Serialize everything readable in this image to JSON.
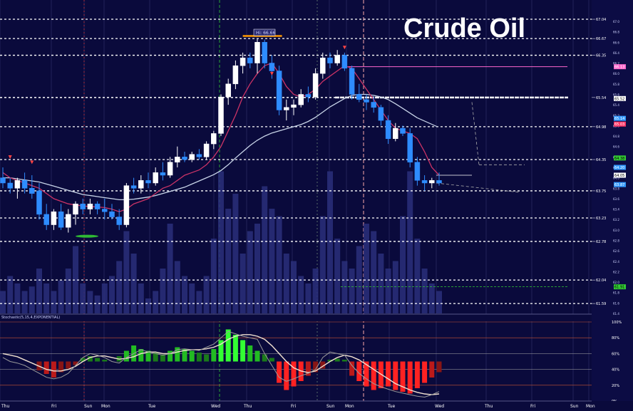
{
  "chart_data": {
    "type": "candlestick",
    "title": "Crude Oil",
    "price_axis": {
      "ticks": [
        67.04,
        66.67,
        66.35,
        65.54,
        64.98,
        64.35,
        63.75,
        63.23,
        62.78,
        62.04,
        61.59
      ],
      "markers": [
        {
          "value": 66.13,
          "color": "#ff66cc"
        },
        {
          "value": 65.52,
          "color": "#ffffff"
        },
        {
          "value": 65.14,
          "color": "#3399ff"
        },
        {
          "value": 65.03,
          "color": "#ff3366"
        },
        {
          "value": 64.38,
          "color": "#33cc33"
        },
        {
          "value": 64.2,
          "color": "#3399ff"
        },
        {
          "value": 64.05,
          "color": "#ffffff"
        },
        {
          "value": 63.87,
          "color": "#3399ff"
        },
        {
          "value": 61.91,
          "color": "#33cc33"
        }
      ],
      "range": [
        61.4,
        67.3
      ]
    },
    "peak_label": "Hi: 66.66",
    "indicator_label": "Stochastic(5,15,4,EXPONENTIAL)",
    "indicator_axis": {
      "ticks": [
        "100%",
        "80%",
        "60%",
        "40%",
        "20%",
        "0%"
      ]
    },
    "x_labels": [
      "Thu",
      "Fri",
      "Sun",
      "Mon",
      "Tue",
      "Wed",
      "Thu",
      "Fri",
      "Sun",
      "Mon",
      "Tue",
      "Wed",
      "Thu",
      "Fri",
      "Sun",
      "Mon"
    ],
    "horizontal_levels": [
      {
        "value": 67.04,
        "style": "dotted"
      },
      {
        "value": 66.67,
        "style": "dotted"
      },
      {
        "value": 66.35,
        "style": "dotted"
      },
      {
        "value": 65.54,
        "style": "solid-white"
      },
      {
        "value": 64.98,
        "style": "dotted"
      },
      {
        "value": 64.35,
        "style": "dotted"
      },
      {
        "value": 63.75,
        "style": "dotted"
      },
      {
        "value": 63.23,
        "style": "dotted"
      },
      {
        "value": 62.78,
        "style": "dotted"
      },
      {
        "value": 62.04,
        "style": "dotted"
      },
      {
        "value": 61.59,
        "style": "dotted"
      }
    ],
    "candles": [
      {
        "o": 64.0,
        "h": 64.2,
        "l": 63.8,
        "c": 63.9
      },
      {
        "o": 63.9,
        "h": 64.0,
        "l": 63.7,
        "c": 63.8
      },
      {
        "o": 63.8,
        "h": 64.0,
        "l": 63.6,
        "c": 63.95
      },
      {
        "o": 63.95,
        "h": 64.1,
        "l": 63.7,
        "c": 63.8
      },
      {
        "o": 63.8,
        "h": 64.05,
        "l": 63.6,
        "c": 63.7
      },
      {
        "o": 63.75,
        "h": 63.9,
        "l": 63.2,
        "c": 63.3
      },
      {
        "o": 63.3,
        "h": 63.5,
        "l": 63.0,
        "c": 63.1
      },
      {
        "o": 63.1,
        "h": 63.4,
        "l": 63.0,
        "c": 63.35
      },
      {
        "o": 63.35,
        "h": 63.5,
        "l": 63.0,
        "c": 63.05
      },
      {
        "o": 63.05,
        "h": 63.4,
        "l": 62.95,
        "c": 63.3
      },
      {
        "o": 63.3,
        "h": 63.55,
        "l": 63.1,
        "c": 63.5
      },
      {
        "o": 63.5,
        "h": 63.6,
        "l": 63.3,
        "c": 63.4
      },
      {
        "o": 63.4,
        "h": 63.6,
        "l": 63.3,
        "c": 63.5
      },
      {
        "o": 63.5,
        "h": 63.55,
        "l": 63.3,
        "c": 63.4
      },
      {
        "o": 63.4,
        "h": 63.6,
        "l": 63.2,
        "c": 63.35
      },
      {
        "o": 63.35,
        "h": 63.5,
        "l": 63.2,
        "c": 63.25
      },
      {
        "o": 63.25,
        "h": 63.4,
        "l": 63.0,
        "c": 63.1
      },
      {
        "o": 63.1,
        "h": 63.9,
        "l": 63.05,
        "c": 63.85
      },
      {
        "o": 63.85,
        "h": 64.0,
        "l": 63.7,
        "c": 63.8
      },
      {
        "o": 63.8,
        "h": 64.05,
        "l": 63.7,
        "c": 63.95
      },
      {
        "o": 63.95,
        "h": 64.1,
        "l": 63.8,
        "c": 63.9
      },
      {
        "o": 63.9,
        "h": 64.2,
        "l": 63.85,
        "c": 64.1
      },
      {
        "o": 64.1,
        "h": 64.3,
        "l": 63.95,
        "c": 64.05
      },
      {
        "o": 64.05,
        "h": 64.4,
        "l": 64.0,
        "c": 64.3
      },
      {
        "o": 64.3,
        "h": 64.6,
        "l": 64.2,
        "c": 64.4
      },
      {
        "o": 64.4,
        "h": 64.5,
        "l": 64.3,
        "c": 64.35
      },
      {
        "o": 64.35,
        "h": 64.5,
        "l": 64.3,
        "c": 64.45
      },
      {
        "o": 64.45,
        "h": 64.55,
        "l": 64.35,
        "c": 64.4
      },
      {
        "o": 64.4,
        "h": 64.7,
        "l": 64.35,
        "c": 64.65
      },
      {
        "o": 64.65,
        "h": 64.9,
        "l": 64.55,
        "c": 64.85
      },
      {
        "o": 64.85,
        "h": 65.6,
        "l": 64.8,
        "c": 65.55
      },
      {
        "o": 65.55,
        "h": 65.9,
        "l": 65.4,
        "c": 65.8
      },
      {
        "o": 65.8,
        "h": 66.25,
        "l": 65.7,
        "c": 66.15
      },
      {
        "o": 66.15,
        "h": 66.4,
        "l": 66.0,
        "c": 66.3
      },
      {
        "o": 66.3,
        "h": 66.4,
        "l": 66.1,
        "c": 66.2
      },
      {
        "o": 66.2,
        "h": 66.66,
        "l": 66.0,
        "c": 66.6
      },
      {
        "o": 66.6,
        "h": 66.65,
        "l": 66.1,
        "c": 66.2
      },
      {
        "o": 66.2,
        "h": 66.35,
        "l": 65.9,
        "c": 66.05
      },
      {
        "o": 66.05,
        "h": 66.15,
        "l": 65.2,
        "c": 65.3
      },
      {
        "o": 65.3,
        "h": 65.5,
        "l": 65.1,
        "c": 65.35
      },
      {
        "o": 65.35,
        "h": 65.5,
        "l": 65.2,
        "c": 65.4
      },
      {
        "o": 65.4,
        "h": 65.7,
        "l": 65.35,
        "c": 65.6
      },
      {
        "o": 65.6,
        "h": 65.75,
        "l": 65.45,
        "c": 65.55
      },
      {
        "o": 65.55,
        "h": 66.1,
        "l": 65.5,
        "c": 66.0
      },
      {
        "o": 66.0,
        "h": 66.4,
        "l": 65.9,
        "c": 66.3
      },
      {
        "o": 66.3,
        "h": 66.4,
        "l": 66.1,
        "c": 66.2
      },
      {
        "o": 66.2,
        "h": 66.45,
        "l": 66.15,
        "c": 66.35
      },
      {
        "o": 66.35,
        "h": 66.4,
        "l": 66.05,
        "c": 66.1
      },
      {
        "o": 66.1,
        "h": 66.15,
        "l": 65.5,
        "c": 65.6
      },
      {
        "o": 65.6,
        "h": 65.8,
        "l": 65.45,
        "c": 65.5
      },
      {
        "o": 65.5,
        "h": 65.6,
        "l": 65.3,
        "c": 65.45
      },
      {
        "o": 65.45,
        "h": 65.55,
        "l": 65.25,
        "c": 65.35
      },
      {
        "o": 65.35,
        "h": 65.4,
        "l": 65.0,
        "c": 65.1
      },
      {
        "o": 65.1,
        "h": 65.2,
        "l": 64.65,
        "c": 64.75
      },
      {
        "o": 64.75,
        "h": 65.05,
        "l": 64.7,
        "c": 64.95
      },
      {
        "o": 64.95,
        "h": 65.0,
        "l": 64.8,
        "c": 64.85
      },
      {
        "o": 64.85,
        "h": 64.95,
        "l": 64.2,
        "c": 64.3
      },
      {
        "o": 64.3,
        "h": 64.4,
        "l": 63.85,
        "c": 63.95
      },
      {
        "o": 63.95,
        "h": 64.05,
        "l": 63.75,
        "c": 63.9
      },
      {
        "o": 63.9,
        "h": 64.0,
        "l": 63.8,
        "c": 63.95
      },
      {
        "o": 63.95,
        "h": 64.1,
        "l": 63.85,
        "c": 63.9
      }
    ],
    "ma_fast": [
      64.1,
      64.0,
      63.95,
      63.9,
      63.85,
      63.8,
      63.7,
      63.6,
      63.55,
      63.5,
      63.48,
      63.46,
      63.45,
      63.44,
      63.43,
      63.4,
      63.35,
      63.4,
      63.5,
      63.55,
      63.6,
      63.7,
      63.8,
      63.85,
      63.95,
      64.05,
      64.1,
      64.15,
      64.25,
      64.4,
      64.6,
      64.9,
      65.2,
      65.55,
      65.8,
      66.0,
      66.15,
      66.2,
      66.0,
      65.75,
      65.6,
      65.55,
      65.6,
      65.7,
      65.85,
      65.95,
      66.05,
      66.15,
      66.1,
      65.9,
      65.7,
      65.5,
      65.3,
      65.1,
      64.95,
      64.9,
      64.85,
      64.75,
      64.5,
      64.2,
      64.05
    ],
    "ma_slow": [
      64.0,
      64.0,
      63.98,
      63.96,
      63.94,
      63.92,
      63.88,
      63.84,
      63.8,
      63.76,
      63.72,
      63.68,
      63.66,
      63.64,
      63.62,
      63.6,
      63.58,
      63.58,
      63.59,
      63.61,
      63.63,
      63.66,
      63.7,
      63.74,
      63.78,
      63.82,
      63.88,
      63.94,
      64.0,
      64.06,
      64.14,
      64.25,
      64.38,
      64.5,
      64.62,
      64.72,
      64.8,
      64.86,
      64.9,
      64.94,
      64.98,
      65.02,
      65.08,
      65.16,
      65.26,
      65.36,
      65.44,
      65.52,
      65.58,
      65.6,
      65.6,
      65.58,
      65.55,
      65.5,
      65.42,
      65.33,
      65.24,
      65.15,
      null,
      null,
      null
    ],
    "volume": [
      0.15,
      0.25,
      0.2,
      0.15,
      0.18,
      0.3,
      0.2,
      0.15,
      0.22,
      0.3,
      0.45,
      0.2,
      0.15,
      0.12,
      0.2,
      0.25,
      0.35,
      0.55,
      0.4,
      0.2,
      0.1,
      0.15,
      0.3,
      0.6,
      0.35,
      0.25,
      0.2,
      0.15,
      0.25,
      0.5,
      0.95,
      0.7,
      0.8,
      0.4,
      0.55,
      0.6,
      0.85,
      0.7,
      0.65,
      0.4,
      0.35,
      0.25,
      0.2,
      0.3,
      0.65,
      0.95,
      0.5,
      0.35,
      0.3,
      0.45,
      0.6,
      0.55,
      0.4,
      0.3,
      0.35,
      0.65,
      0.95,
      0.5,
      0.3,
      0.2,
      0.15
    ],
    "histogram": [
      0,
      0,
      0,
      0,
      0,
      -0.25,
      -0.35,
      -0.45,
      -0.3,
      -0.2,
      -0.1,
      0.1,
      0.15,
      0.1,
      0.05,
      0,
      0.15,
      0.3,
      0.45,
      0.35,
      0.3,
      0.25,
      0.2,
      0.3,
      0.4,
      0.35,
      0.3,
      0.25,
      0.2,
      0.35,
      0.6,
      0.9,
      0.75,
      0.6,
      0.45,
      0.3,
      0.2,
      0.1,
      -0.6,
      -0.8,
      -0.7,
      -0.55,
      -0.4,
      -0.3,
      -0.2,
      0.05,
      0.08,
      0.05,
      -0.4,
      -0.55,
      -0.7,
      -0.8,
      -0.75,
      -0.7,
      -0.8,
      -0.85,
      -0.9,
      -0.75,
      -0.6,
      -0.45,
      -0.3
    ],
    "k_line": [
      55,
      50,
      48,
      45,
      40,
      35,
      30,
      28,
      30,
      35,
      45,
      55,
      60,
      58,
      55,
      50,
      48,
      55,
      60,
      65,
      62,
      60,
      58,
      60,
      65,
      66,
      65,
      64,
      68,
      72,
      80,
      88,
      85,
      82,
      80,
      78,
      60,
      45,
      30,
      25,
      28,
      32,
      35,
      40,
      55,
      62,
      60,
      58,
      45,
      35,
      28,
      22,
      18,
      15,
      12,
      10,
      8,
      6,
      5,
      8,
      12
    ],
    "d_line": [
      60,
      58,
      56,
      52,
      48,
      44,
      40,
      38,
      38,
      40,
      44,
      50,
      55,
      57,
      57,
      55,
      53,
      54,
      56,
      60,
      62,
      62,
      60,
      60,
      62,
      64,
      65,
      65,
      66,
      68,
      72,
      78,
      82,
      84,
      84,
      82,
      78,
      70,
      60,
      50,
      42,
      38,
      36,
      38,
      44,
      50,
      55,
      58,
      56,
      52,
      46,
      40,
      34,
      28,
      22,
      18,
      14,
      11,
      9,
      8,
      9
    ]
  }
}
